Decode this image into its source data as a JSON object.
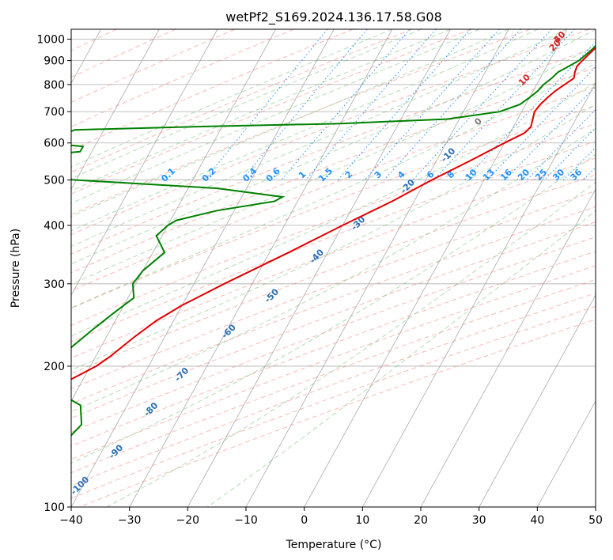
{
  "chart_data": {
    "type": "line",
    "subtype": "skew-T log-P diagram",
    "title": "wetPf2_S169.2024.136.17.58.G08",
    "xlabel": "Temperature (°C)",
    "ylabel": "Pressure (hPa)",
    "xlim": [
      -40,
      50
    ],
    "ylim": [
      1050,
      100
    ],
    "yscale": "log",
    "x_ticks": [
      "−40",
      "−30",
      "−20",
      "−10",
      "0",
      "10",
      "20",
      "30",
      "40",
      "50"
    ],
    "y_ticks": [
      "100",
      "200",
      "300",
      "400",
      "500",
      "600",
      "700",
      "800",
      "900",
      "1000"
    ],
    "y_tick_values": [
      100,
      200,
      300,
      400,
      500,
      600,
      700,
      800,
      900,
      1000
    ],
    "grid": true,
    "colors": {
      "temperature": "#e00000",
      "dewpoint": "#008000",
      "isotherm": "#888888",
      "dry_adiabat": "#fa8072",
      "moist_adiabat": "#66bb66",
      "mixing_ratio": "#1e90ff",
      "dry_adiabat_label": "#2a6eb4",
      "moist_adiabat_label": "#d62728",
      "mixing_ratio_label": "#1e90ff"
    },
    "series": [
      {
        "key": "temperature",
        "points": [
          [
            1000,
            10.5
          ],
          [
            975,
            7.5
          ],
          [
            950,
            6.5
          ],
          [
            900,
            5.6
          ],
          [
            875,
            5.2
          ],
          [
            850,
            5.4
          ],
          [
            825,
            5.8
          ],
          [
            800,
            4.8
          ],
          [
            775,
            3.8
          ],
          [
            750,
            3.1
          ],
          [
            725,
            2.5
          ],
          [
            700,
            2.2
          ],
          [
            675,
            2.6
          ],
          [
            650,
            3.0
          ],
          [
            630,
            2.5
          ],
          [
            600,
            0.0
          ],
          [
            550,
            -4.2
          ],
          [
            500,
            -9.0
          ],
          [
            450,
            -13.8
          ],
          [
            400,
            -20.0
          ],
          [
            350,
            -26.7
          ],
          [
            300,
            -34.8
          ],
          [
            270,
            -40.0
          ],
          [
            250,
            -43.0
          ],
          [
            230,
            -45.3
          ],
          [
            210,
            -47.5
          ],
          [
            200,
            -49.0
          ],
          [
            180,
            -54.0
          ],
          [
            150,
            -60.0
          ],
          [
            130,
            -64.0
          ],
          [
            110,
            -68.0
          ],
          [
            100,
            -71.0
          ]
        ]
      },
      {
        "key": "dewpoint",
        "points": [
          [
            1000,
            7.0
          ],
          [
            950,
            6.2
          ],
          [
            900,
            5.0
          ],
          [
            875,
            3.8
          ],
          [
            850,
            2.5
          ],
          [
            825,
            2.0
          ],
          [
            800,
            1.2
          ],
          [
            775,
            0.8
          ],
          [
            750,
            0.0
          ],
          [
            725,
            -1.0
          ],
          [
            700,
            -3.8
          ],
          [
            675,
            -12.0
          ],
          [
            660,
            -30.0
          ],
          [
            650,
            -55.0
          ],
          [
            640,
            -75.0
          ],
          [
            600,
            -79.0
          ],
          [
            590,
            -72.0
          ],
          [
            575,
            -72.0
          ],
          [
            570,
            -75.0
          ],
          [
            565,
            -79.0
          ],
          [
            510,
            -79.0
          ],
          [
            500,
            -70.0
          ],
          [
            480,
            -45.0
          ],
          [
            460,
            -33.0
          ],
          [
            450,
            -34.0
          ],
          [
            430,
            -43.0
          ],
          [
            410,
            -49.0
          ],
          [
            400,
            -50.0
          ],
          [
            380,
            -51.0
          ],
          [
            350,
            -48.0
          ],
          [
            320,
            -50.0
          ],
          [
            300,
            -50.5
          ],
          [
            280,
            -49.0
          ],
          [
            260,
            -51.0
          ],
          [
            240,
            -53.0
          ],
          [
            220,
            -55.0
          ],
          [
            200,
            -56.0
          ],
          [
            190,
            -57.0
          ],
          [
            180,
            -55.0
          ],
          [
            165,
            -48.0
          ],
          [
            150,
            -46.0
          ],
          [
            140,
            -47.0
          ],
          [
            128,
            -49.0
          ],
          [
            120,
            -49.0
          ],
          [
            110,
            -46.0
          ],
          [
            100,
            -45.0
          ]
        ]
      }
    ],
    "annotations": {
      "dry_adiabats": [
        {
          "label": "-100",
          "at": [
            -40,
            110
          ]
        },
        {
          "label": "-90",
          "at": [
            -37,
            130
          ]
        },
        {
          "label": "-80",
          "at": [
            -35,
            160
          ]
        },
        {
          "label": "-70",
          "at": [
            -33,
            190
          ]
        },
        {
          "label": "-60",
          "at": [
            -29,
            235
          ]
        },
        {
          "label": "-50",
          "at": [
            -25,
            280
          ]
        },
        {
          "label": "-40",
          "at": [
            -21,
            340
          ]
        },
        {
          "label": "-30",
          "at": [
            -17,
            400
          ]
        },
        {
          "label": "-20",
          "at": [
            -12,
            480
          ]
        },
        {
          "label": "-10",
          "at": [
            -8,
            560
          ]
        }
      ],
      "moist_adiabats": [
        {
          "label": "0",
          "at": [
            -6,
            660
          ]
        },
        {
          "label": "10",
          "at": [
            -2,
            810
          ]
        },
        {
          "label": "20",
          "at": [
            0,
            960
          ]
        },
        {
          "label": "30",
          "at": [
            0,
            1150
          ]
        },
        {
          "label": "40",
          "at": [
            0,
            1300
          ]
        }
      ],
      "mixing_ratios": [
        {
          "label": "0.1",
          "x": -23
        },
        {
          "label": "0.2",
          "x": -16
        },
        {
          "label": "0.4",
          "x": -9
        },
        {
          "label": "0.6",
          "x": -5
        },
        {
          "label": "1",
          "x": 0
        },
        {
          "label": "1.5",
          "x": 4
        },
        {
          "label": "2",
          "x": 8
        },
        {
          "label": "3",
          "x": 13
        },
        {
          "label": "4",
          "x": 17
        },
        {
          "label": "6",
          "x": 22
        },
        {
          "label": "8",
          "x": 25.5
        },
        {
          "label": "10",
          "x": 29
        },
        {
          "label": "13",
          "x": 32
        },
        {
          "label": "16",
          "x": 35
        },
        {
          "label": "20",
          "x": 38
        },
        {
          "label": "25",
          "x": 41
        },
        {
          "label": "30",
          "x": 44
        },
        {
          "label": "36",
          "x": 47
        }
      ]
    }
  }
}
